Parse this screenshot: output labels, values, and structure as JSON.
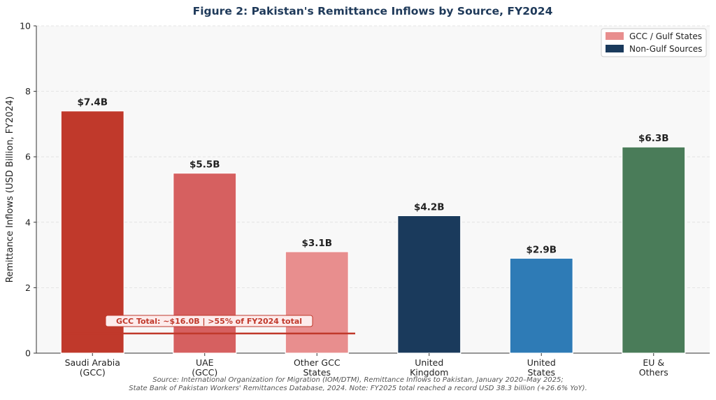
{
  "chart_data": {
    "type": "bar",
    "title": "Figure 2: Pakistan's Remittance Inflows by Source, FY2024",
    "ylabel": "Remittance Inflows (USD Billion, FY2024)",
    "xlabel": "",
    "ylim": [
      0,
      10
    ],
    "yticks": [
      "0",
      "2",
      "4",
      "6",
      "8",
      "10"
    ],
    "grid": "horizontal dashed",
    "legend_position": "top-right",
    "categories": [
      [
        "Saudi Arabia",
        "(GCC)"
      ],
      [
        "UAE",
        "(GCC)"
      ],
      [
        "Other GCC",
        "States"
      ],
      [
        "United",
        "Kingdom"
      ],
      [
        "United",
        "States"
      ],
      [
        "EU &",
        "Others"
      ]
    ],
    "values": [
      7.4,
      5.5,
      3.1,
      4.2,
      2.9,
      6.3
    ],
    "data_labels": [
      "$7.4B",
      "$5.5B",
      "$3.1B",
      "$4.2B",
      "$2.9B",
      "$6.3B"
    ],
    "group": [
      "gcc",
      "gcc",
      "gcc",
      "non-gulf",
      "non-gulf",
      "non-gulf"
    ],
    "bar_colors": [
      "#c0392b",
      "#d66060",
      "#e88e8e",
      "#1a3a5c",
      "#2e7bb6",
      "#4a7c59"
    ],
    "legend": [
      {
        "label": "GCC / Gulf States",
        "color": "#e88e8e"
      },
      {
        "label": "Non-Gulf Sources",
        "color": "#1a3a5c"
      }
    ],
    "annotation": {
      "text": "GCC Total: ~$16.0B  |  >55% of FY2024 total",
      "line_y": 0.6,
      "line_color": "#c0392b"
    },
    "source_note": [
      "Source: International Organization for Migration (IOM/DTM), Remittance Inflows to Pakistan, January 2020–May 2025;",
      "State Bank of Pakistan Workers' Remittances Database, 2024.   Note: FY2025 total reached a record USD 38.3 billion (+26.6% YoY)."
    ]
  },
  "colors": {
    "title": "#1f3a5a",
    "plot_bg": "#f8f8f8",
    "grid": "#dddddd",
    "axis": "#333333",
    "label_text": "#222222",
    "source_text": "#555555"
  }
}
